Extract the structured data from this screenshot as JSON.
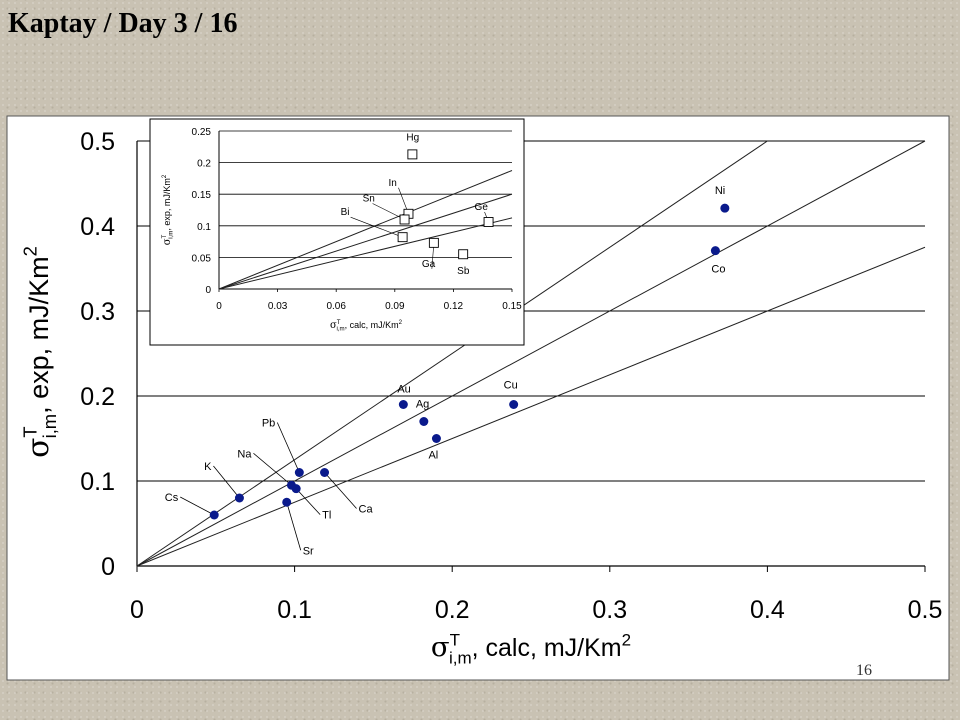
{
  "slide": {
    "title": "Kaptay / Day 3 / 16",
    "page_number": "16"
  },
  "chart_data": [
    {
      "type": "scatter",
      "title": "",
      "xlabel": {
        "symbol": "σ",
        "sup": "T",
        "sub": "i,m",
        "text": ", calc, mJ/Km",
        "unit_sup": "2"
      },
      "ylabel": {
        "symbol": "σ",
        "sup": "T",
        "sub": "i,m",
        "text": ", exp, mJ/Km",
        "unit_sup": "2"
      },
      "xlim": [
        0,
        0.5
      ],
      "ylim": [
        0,
        0.5
      ],
      "x_ticks": [
        "0",
        "0.1",
        "0.2",
        "0.3",
        "0.4",
        "0.5"
      ],
      "y_ticks": [
        "0",
        "0.1",
        "0.2",
        "0.3",
        "0.4",
        "0.5"
      ],
      "grid": "horizontal",
      "marker": "filled-circle",
      "marker_color": "#0a1a8c",
      "points": [
        {
          "label": "Cs",
          "x": 0.049,
          "y": 0.06
        },
        {
          "label": "K",
          "x": 0.065,
          "y": 0.08
        },
        {
          "label": "Na",
          "x": 0.098,
          "y": 0.095
        },
        {
          "label": "Tl",
          "x": 0.101,
          "y": 0.091
        },
        {
          "label": "Sr",
          "x": 0.095,
          "y": 0.075
        },
        {
          "label": "Pb",
          "x": 0.103,
          "y": 0.11
        },
        {
          "label": "Ca",
          "x": 0.119,
          "y": 0.11
        },
        {
          "label": "Au",
          "x": 0.169,
          "y": 0.19
        },
        {
          "label": "Ag",
          "x": 0.182,
          "y": 0.17
        },
        {
          "label": "Al",
          "x": 0.19,
          "y": 0.15
        },
        {
          "label": "Cu",
          "x": 0.239,
          "y": 0.19
        },
        {
          "label": "Co",
          "x": 0.367,
          "y": 0.371
        },
        {
          "label": "Ni",
          "x": 0.373,
          "y": 0.421
        }
      ],
      "reference_lines": [
        {
          "slope": 1.25
        },
        {
          "slope": 1.0
        },
        {
          "slope": 0.75
        }
      ]
    },
    {
      "type": "scatter",
      "title": "",
      "xlabel": {
        "symbol": "σ",
        "sup": "T",
        "sub": "i,m",
        "text": ", calc, mJ/Km",
        "unit_sup": "2"
      },
      "ylabel": {
        "symbol": "σ",
        "sup": "T",
        "sub": "i,m",
        "text": ", exp, mJ/Km",
        "unit_sup": "2"
      },
      "xlim": [
        0,
        0.15
      ],
      "ylim": [
        0,
        0.25
      ],
      "x_ticks": [
        "0",
        "0.03",
        "0.06",
        "0.09",
        "0.12",
        "0.15"
      ],
      "y_ticks": [
        "0",
        "0.05",
        "0.1",
        "0.15",
        "0.2",
        "0.25"
      ],
      "grid": "horizontal",
      "marker": "open-square",
      "points": [
        {
          "label": "Hg",
          "x": 0.099,
          "y": 0.213
        },
        {
          "label": "In",
          "x": 0.097,
          "y": 0.119
        },
        {
          "label": "Sn",
          "x": 0.095,
          "y": 0.11
        },
        {
          "label": "Bi",
          "x": 0.094,
          "y": 0.082
        },
        {
          "label": "Ge",
          "x": 0.138,
          "y": 0.106
        },
        {
          "label": "Ga",
          "x": 0.11,
          "y": 0.073
        },
        {
          "label": "Sb",
          "x": 0.125,
          "y": 0.055
        }
      ],
      "reference_lines": [
        {
          "slope": 1.25
        },
        {
          "slope": 1.0
        },
        {
          "slope": 0.75
        }
      ]
    }
  ]
}
